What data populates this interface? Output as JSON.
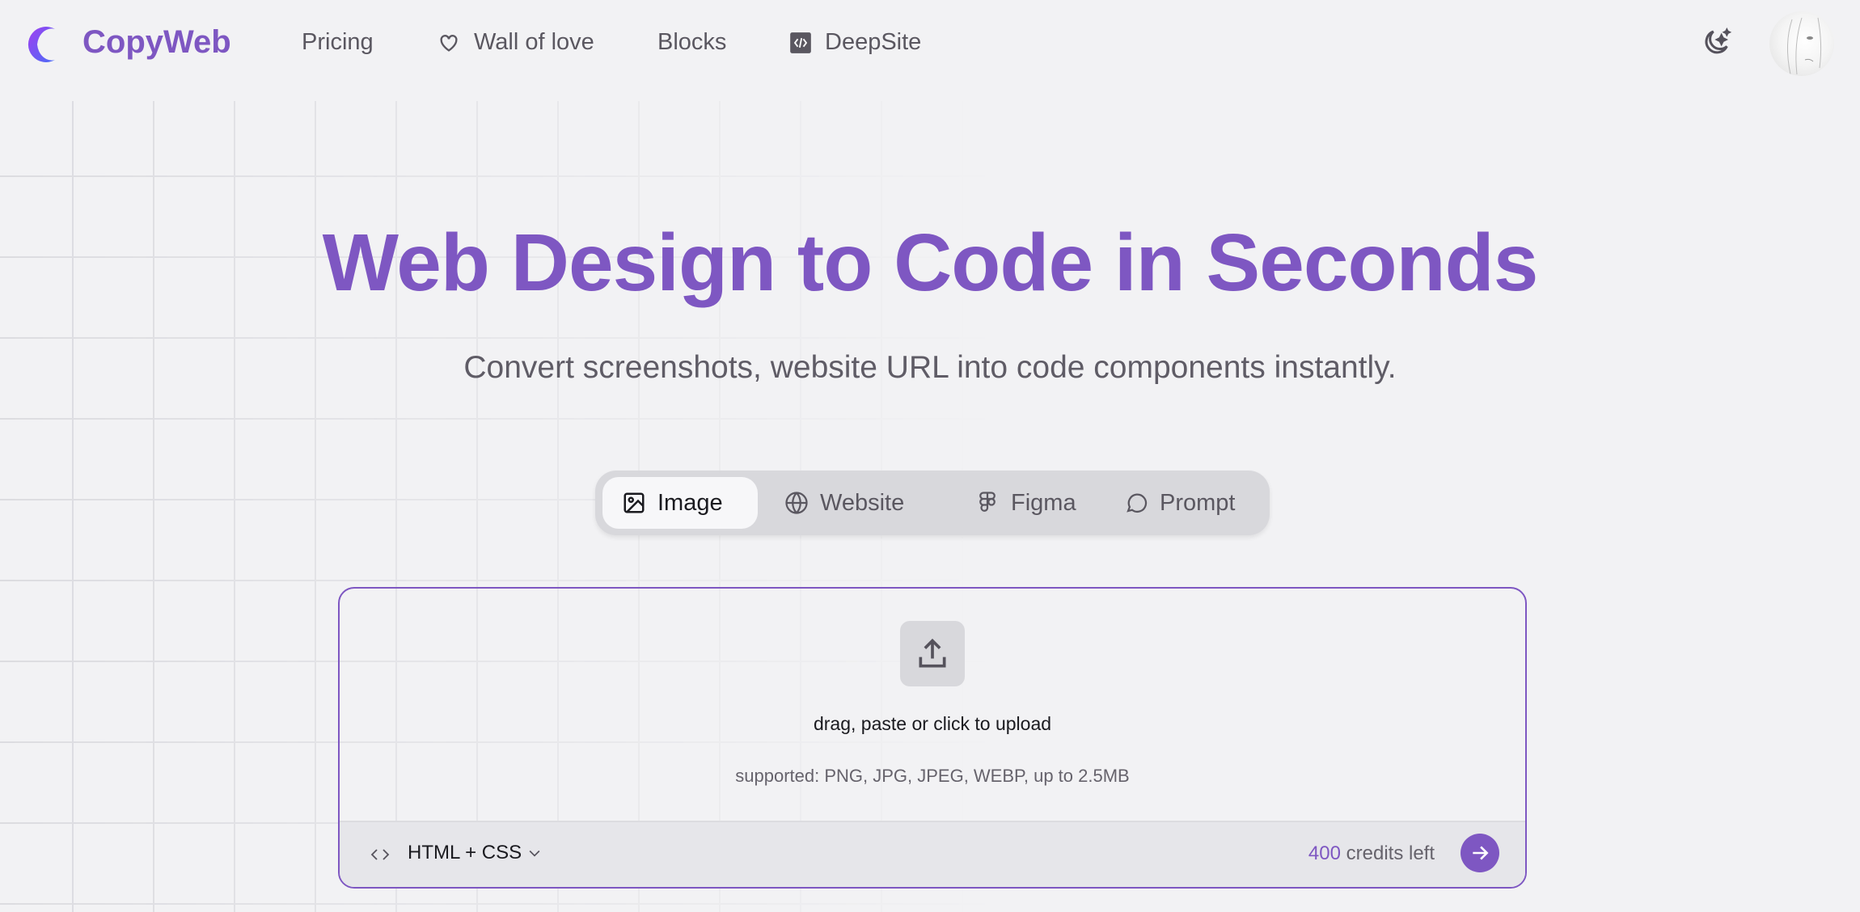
{
  "nav": {
    "brand": "CopyWeb",
    "items": [
      {
        "label": "Pricing",
        "icon": ""
      },
      {
        "label": "Wall of love",
        "icon": "heart-icon"
      },
      {
        "label": "Blocks",
        "icon": ""
      },
      {
        "label": "DeepSite",
        "icon": "code-square-icon"
      }
    ],
    "theme_icon": "moon-stars-icon",
    "avatar": "user-avatar"
  },
  "hero": {
    "title": "Web Design to Code in Seconds",
    "subtitle": "Convert screenshots, website URL into code components instantly."
  },
  "tabs": [
    {
      "label": "Image",
      "icon": "image-icon",
      "active": true
    },
    {
      "label": "Website",
      "icon": "globe-icon"
    },
    {
      "label": "Figma",
      "icon": "figma-icon"
    },
    {
      "label": "Prompt",
      "icon": "chat-bubble-icon"
    }
  ],
  "upload": {
    "icon": "upload-icon",
    "prompt": "drag, paste or click to upload",
    "supported": "supported: PNG, JPG, JPEG, WEBP, up to 2.5MB"
  },
  "footer": {
    "framework": "HTML + CSS",
    "credits": "400",
    "credits_suffix": "credits left"
  },
  "colors": {
    "accent": "#7e57c2",
    "background": "#f2f2f4"
  }
}
